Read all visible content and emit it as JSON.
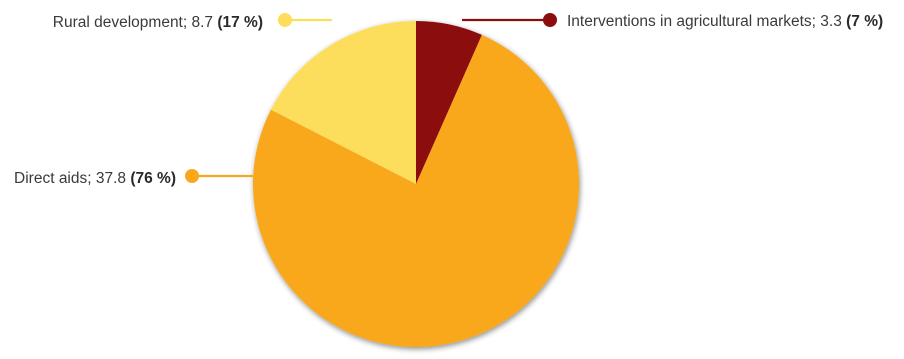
{
  "chart_data": {
    "type": "pie",
    "slices": [
      {
        "label": "Interventions in agricultural markets",
        "value": 3.3,
        "value_text": "3.3",
        "percent_text": "7 %",
        "color": "#8b0d0d",
        "label_side": "right"
      },
      {
        "label": "Direct aids",
        "value": 37.8,
        "value_text": "37.8",
        "percent_text": "76 %",
        "color": "#f9a81a",
        "label_side": "left"
      },
      {
        "label": "Rural development",
        "value": 8.7,
        "value_text": "8.7",
        "percent_text": "17 %",
        "color": "#fddd5c",
        "label_side": "left"
      }
    ],
    "start_angle": "12 o'clock",
    "direction": "clockwise",
    "legend": "none",
    "data_labels": "outside with leader lines and dot markers"
  }
}
